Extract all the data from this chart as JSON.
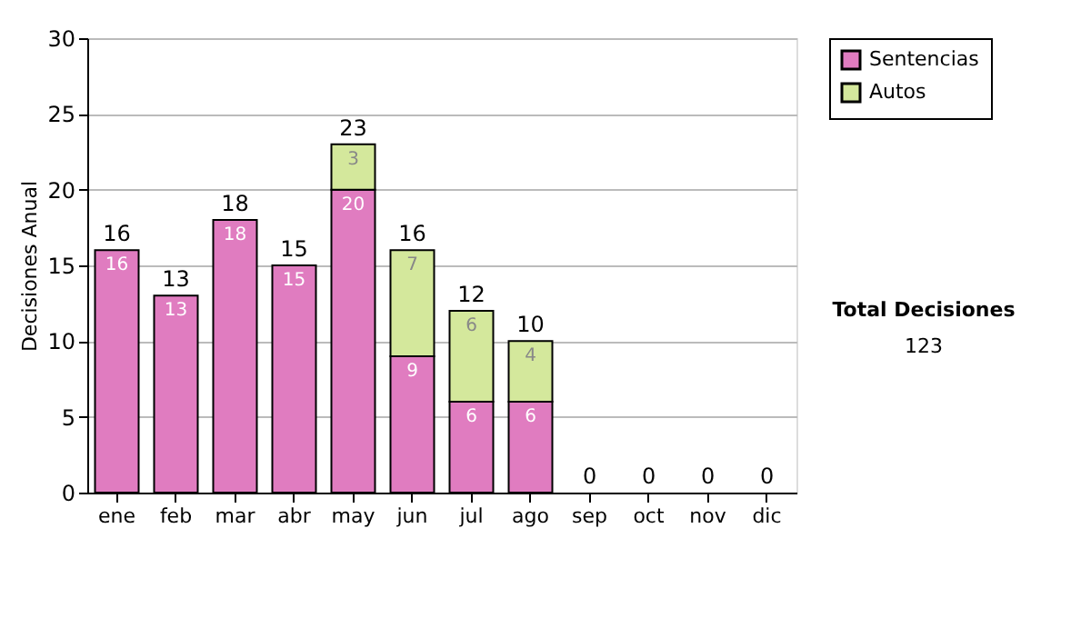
{
  "chart_data": {
    "type": "bar",
    "stacked": true,
    "ylabel": "Decisiones Anual",
    "categories": [
      "ene",
      "feb",
      "mar",
      "abr",
      "may",
      "jun",
      "jul",
      "ago",
      "sep",
      "oct",
      "nov",
      "dic"
    ],
    "series": [
      {
        "name": "Sentencias",
        "color": "#e07cc0",
        "values": [
          16,
          13,
          18,
          15,
          20,
          9,
          6,
          6,
          0,
          0,
          0,
          0
        ],
        "value_labels": [
          "16",
          "13",
          "18",
          "15",
          "20",
          "9",
          "6",
          "6",
          null,
          null,
          null,
          null
        ]
      },
      {
        "name": "Autos",
        "color": "#d4e89c",
        "values": [
          0,
          0,
          0,
          0,
          3,
          7,
          6,
          4,
          0,
          0,
          0,
          0
        ],
        "value_labels": [
          null,
          null,
          null,
          null,
          "3",
          "7",
          "6",
          "4",
          null,
          null,
          null,
          null
        ]
      }
    ],
    "totals": [
      "16",
      "13",
      "18",
      "15",
      "23",
      "16",
      "12",
      "10",
      "0",
      "0",
      "0",
      "0"
    ],
    "ylim": [
      0,
      30
    ],
    "yticks": [
      0,
      5,
      10,
      15,
      20,
      25,
      30
    ],
    "grid": "y",
    "legend": "right",
    "annotations": [
      "Total Decisiones",
      "123"
    ]
  }
}
